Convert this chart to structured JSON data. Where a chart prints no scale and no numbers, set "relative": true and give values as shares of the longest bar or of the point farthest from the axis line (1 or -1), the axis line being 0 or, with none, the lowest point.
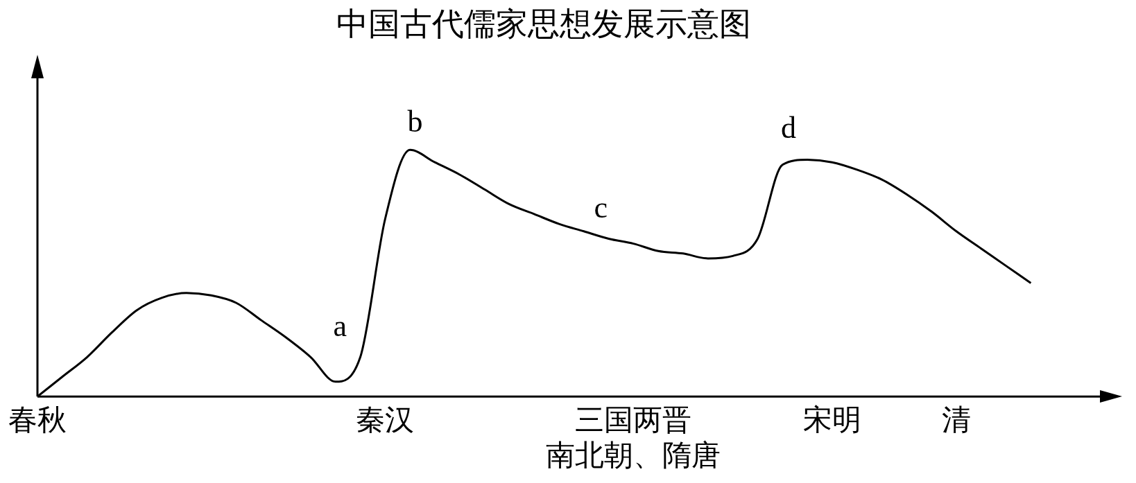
{
  "chart_data": {
    "type": "line",
    "title": "中国古代儒家思想发展示意图",
    "relative": true,
    "marker": "none",
    "grid": false,
    "legend": false,
    "categories": [
      "春秋",
      null,
      null,
      null,
      null,
      null,
      null,
      null,
      null,
      null,
      null,
      null,
      null,
      null,
      "秦汉",
      null,
      null,
      null,
      null,
      null,
      null,
      null,
      null,
      null,
      "三国两晋南北朝、隋唐",
      null,
      null,
      null,
      null,
      null,
      null,
      null,
      "宋明",
      null,
      null,
      null,
      null,
      "清",
      null,
      null,
      null,
      null,
      null
    ],
    "series": [
      {
        "color": "#000000",
        "values": [
          0,
          0.08,
          0.16,
          0.26,
          0.35,
          0.4,
          0.42,
          0.41,
          0.38,
          0.31,
          0.24,
          0.16,
          0.06,
          0.16,
          0.72,
          1,
          0.95,
          0.9,
          0.84,
          0.78,
          0.74,
          0.7,
          0.67,
          0.64,
          0.62,
          0.59,
          0.58,
          0.56,
          0.57,
          0.64,
          0.94,
          0.96,
          0.95,
          0.92,
          0.88,
          0.82,
          0.75,
          0.67,
          0.6,
          0.53,
          0.46,
          null,
          null
        ]
      }
    ],
    "annotations": [
      "a",
      "b",
      "c",
      "d"
    ]
  }
}
